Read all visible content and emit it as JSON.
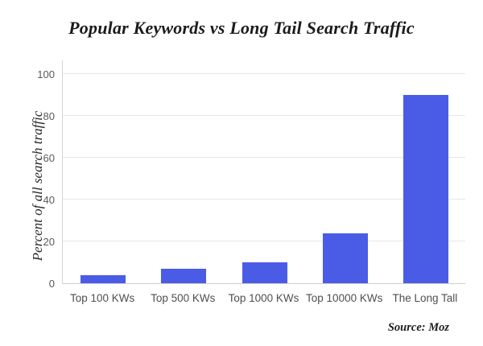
{
  "chart_data": {
    "type": "bar",
    "title": "Popular Keywords vs Long Tail Search Traffic",
    "ylabel": "Percent of all search traffic",
    "source": "Source: Moz",
    "categories": [
      "Top 100 KWs",
      "Top 500 KWs",
      "Top 1000 KWs",
      "Top 10000 KWs",
      "The Long Tall"
    ],
    "values": [
      4,
      7,
      10,
      24,
      90
    ],
    "yticks": [
      0,
      20,
      40,
      60,
      80,
      100
    ],
    "ylim": [
      0,
      107
    ],
    "grid": "horizontal",
    "legend": "none",
    "colors": {
      "bar": "#4a5ce6",
      "gridline": "#e6e6e6",
      "axis_line": "#d2d2d2",
      "tick_label": "#58595b",
      "title_text": "#1b1b1b"
    }
  }
}
